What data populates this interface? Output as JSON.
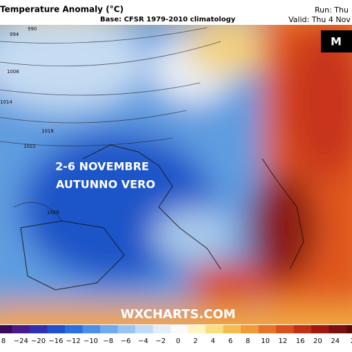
{
  "header": {
    "title": "Temperature Anomaly (°C)",
    "base": "Base: CFSR 1979-2010 climatology",
    "run": "Run: Thu",
    "valid": "Valid: Thu 4 Nov"
  },
  "logo": "M",
  "overlay": {
    "line1": "2-6 NOVEMBRE",
    "line2": "AUTUNNO VERO",
    "watermark": "WXCHARTS.COM"
  },
  "isobars": [
    "990",
    "994",
    "1006",
    "1014",
    "1018",
    "1022",
    "1026"
  ],
  "colorbar": [
    "8",
    "−24",
    "−20",
    "−16",
    "−12",
    "−10",
    "−8",
    "−6",
    "−4",
    "−2",
    "0",
    "2",
    "4",
    "6",
    "8",
    "10",
    "12",
    "16",
    "20",
    "24",
    "2"
  ]
}
